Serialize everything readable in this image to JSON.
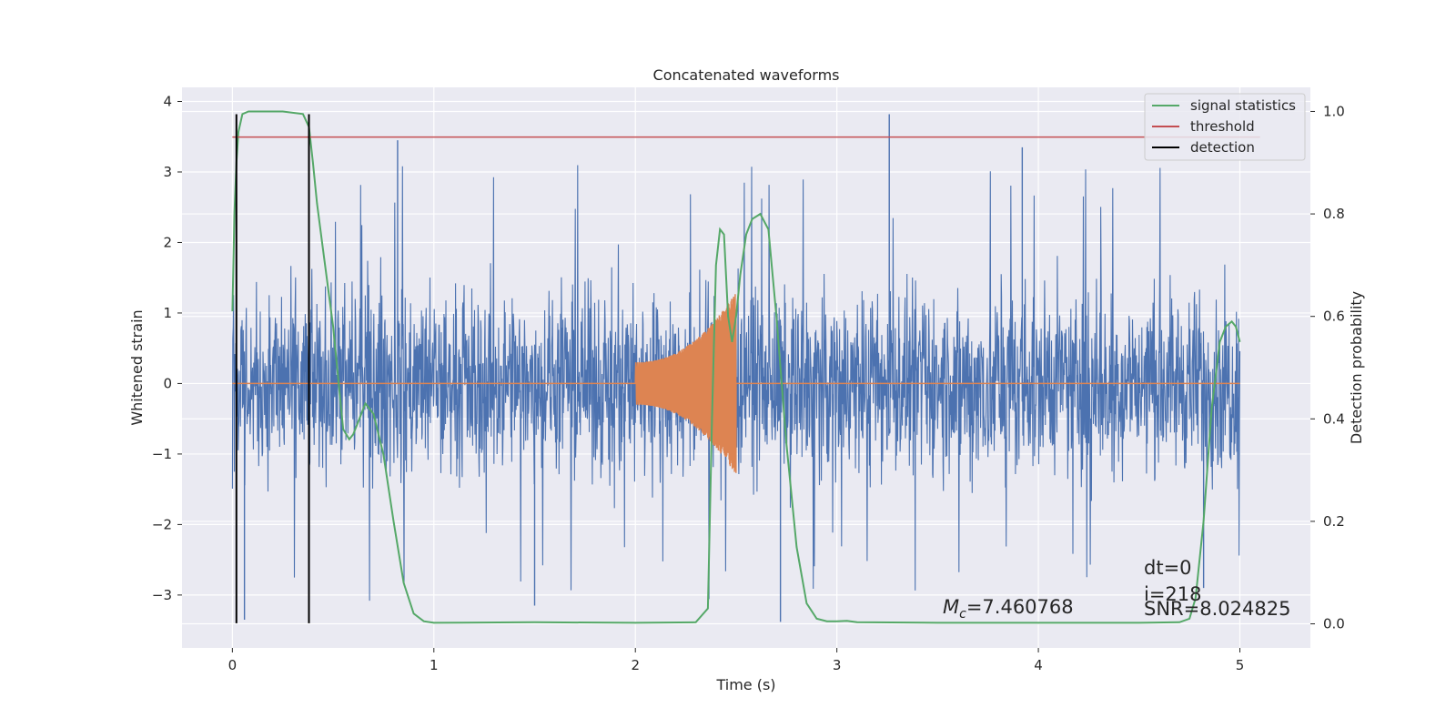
{
  "chart_data": {
    "type": "line",
    "title": "Concatenated waveforms",
    "xlabel": "Time (s)",
    "ylabel": "Whitened strain",
    "y2label": "Detection probability",
    "xlim": [
      -0.25,
      5.35
    ],
    "ylim": [
      -3.75,
      4.2
    ],
    "y2lim": [
      -0.047,
      1.047
    ],
    "xticks": [
      0,
      1,
      2,
      3,
      4,
      5
    ],
    "yticks": [
      -3,
      -2,
      -1,
      0,
      1,
      2,
      3,
      4
    ],
    "y2ticks": [
      0.0,
      0.2,
      0.4,
      0.6,
      0.8,
      1.0
    ],
    "xtick_labels": [
      "0",
      "1",
      "2",
      "3",
      "4",
      "5"
    ],
    "ytick_labels": [
      "−3",
      "−2",
      "−1",
      "0",
      "1",
      "2",
      "3",
      "4"
    ],
    "y2tick_labels": [
      "0.0",
      "0.2",
      "0.4",
      "0.6",
      "0.8",
      "1.0"
    ],
    "grid": true,
    "legend_position": "top-right",
    "colors": {
      "strain": "#4c72b0",
      "template": "#dd8452",
      "signal_statistics": "#55a868",
      "threshold": "#c44e52",
      "detection": "#000000",
      "background": "#eaeaf2",
      "grid": "#ffffff"
    },
    "series": [
      {
        "name": "signal statistics",
        "axis": "right",
        "x": [
          0,
          0.01,
          0.02,
          0.03,
          0.05,
          0.08,
          0.15,
          0.25,
          0.35,
          0.38,
          0.4,
          0.42,
          0.45,
          0.5,
          0.55,
          0.58,
          0.6,
          0.63,
          0.66,
          0.7,
          0.75,
          0.8,
          0.85,
          0.9,
          0.95,
          1.0,
          1.5,
          2.0,
          2.3,
          2.36,
          2.38,
          2.4,
          2.42,
          2.44,
          2.46,
          2.48,
          2.5,
          2.52,
          2.55,
          2.58,
          2.62,
          2.66,
          2.7,
          2.75,
          2.8,
          2.85,
          2.9,
          2.95,
          3.0,
          3.05,
          3.1,
          3.5,
          4.0,
          4.5,
          4.7,
          4.75,
          4.78,
          4.82,
          4.86,
          4.9,
          4.93,
          4.96,
          4.98,
          5.0
        ],
        "y": [
          0.61,
          0.8,
          0.9,
          0.96,
          0.995,
          1.0,
          1.0,
          1.0,
          0.995,
          0.97,
          0.9,
          0.82,
          0.73,
          0.58,
          0.38,
          0.36,
          0.37,
          0.4,
          0.43,
          0.41,
          0.33,
          0.2,
          0.08,
          0.02,
          0.005,
          0.002,
          0.003,
          0.002,
          0.003,
          0.03,
          0.4,
          0.7,
          0.77,
          0.76,
          0.6,
          0.55,
          0.6,
          0.68,
          0.76,
          0.79,
          0.8,
          0.77,
          0.6,
          0.35,
          0.15,
          0.04,
          0.01,
          0.005,
          0.005,
          0.006,
          0.003,
          0.002,
          0.002,
          0.002,
          0.003,
          0.01,
          0.05,
          0.2,
          0.42,
          0.55,
          0.58,
          0.59,
          0.58,
          0.55
        ]
      },
      {
        "name": "threshold",
        "axis": "right",
        "x": [
          0,
          5.1
        ],
        "y": [
          0.95,
          0.95
        ]
      },
      {
        "name": "detection",
        "axis": "left",
        "type": "vlines",
        "x": [
          0.02,
          0.38
        ],
        "ymin": -3.4,
        "ymax": 3.82
      }
    ],
    "noise": {
      "axis": "left",
      "x_range": [
        0,
        5
      ],
      "typical_range": [
        -1.5,
        1.5
      ],
      "peak_max": 3.82,
      "peak_min": -3.38
    },
    "template": {
      "axis": "left",
      "x_range": [
        2.0,
        2.5
      ],
      "start_amplitude": 0.3,
      "peak_amplitude": 1.3
    },
    "annotations": {
      "mc_symbol": "M",
      "mc_subscript": "c",
      "mc_value": "=7.460768",
      "dt": "dt=0",
      "i": "i=218",
      "snr": "SNR=8.024825"
    }
  }
}
